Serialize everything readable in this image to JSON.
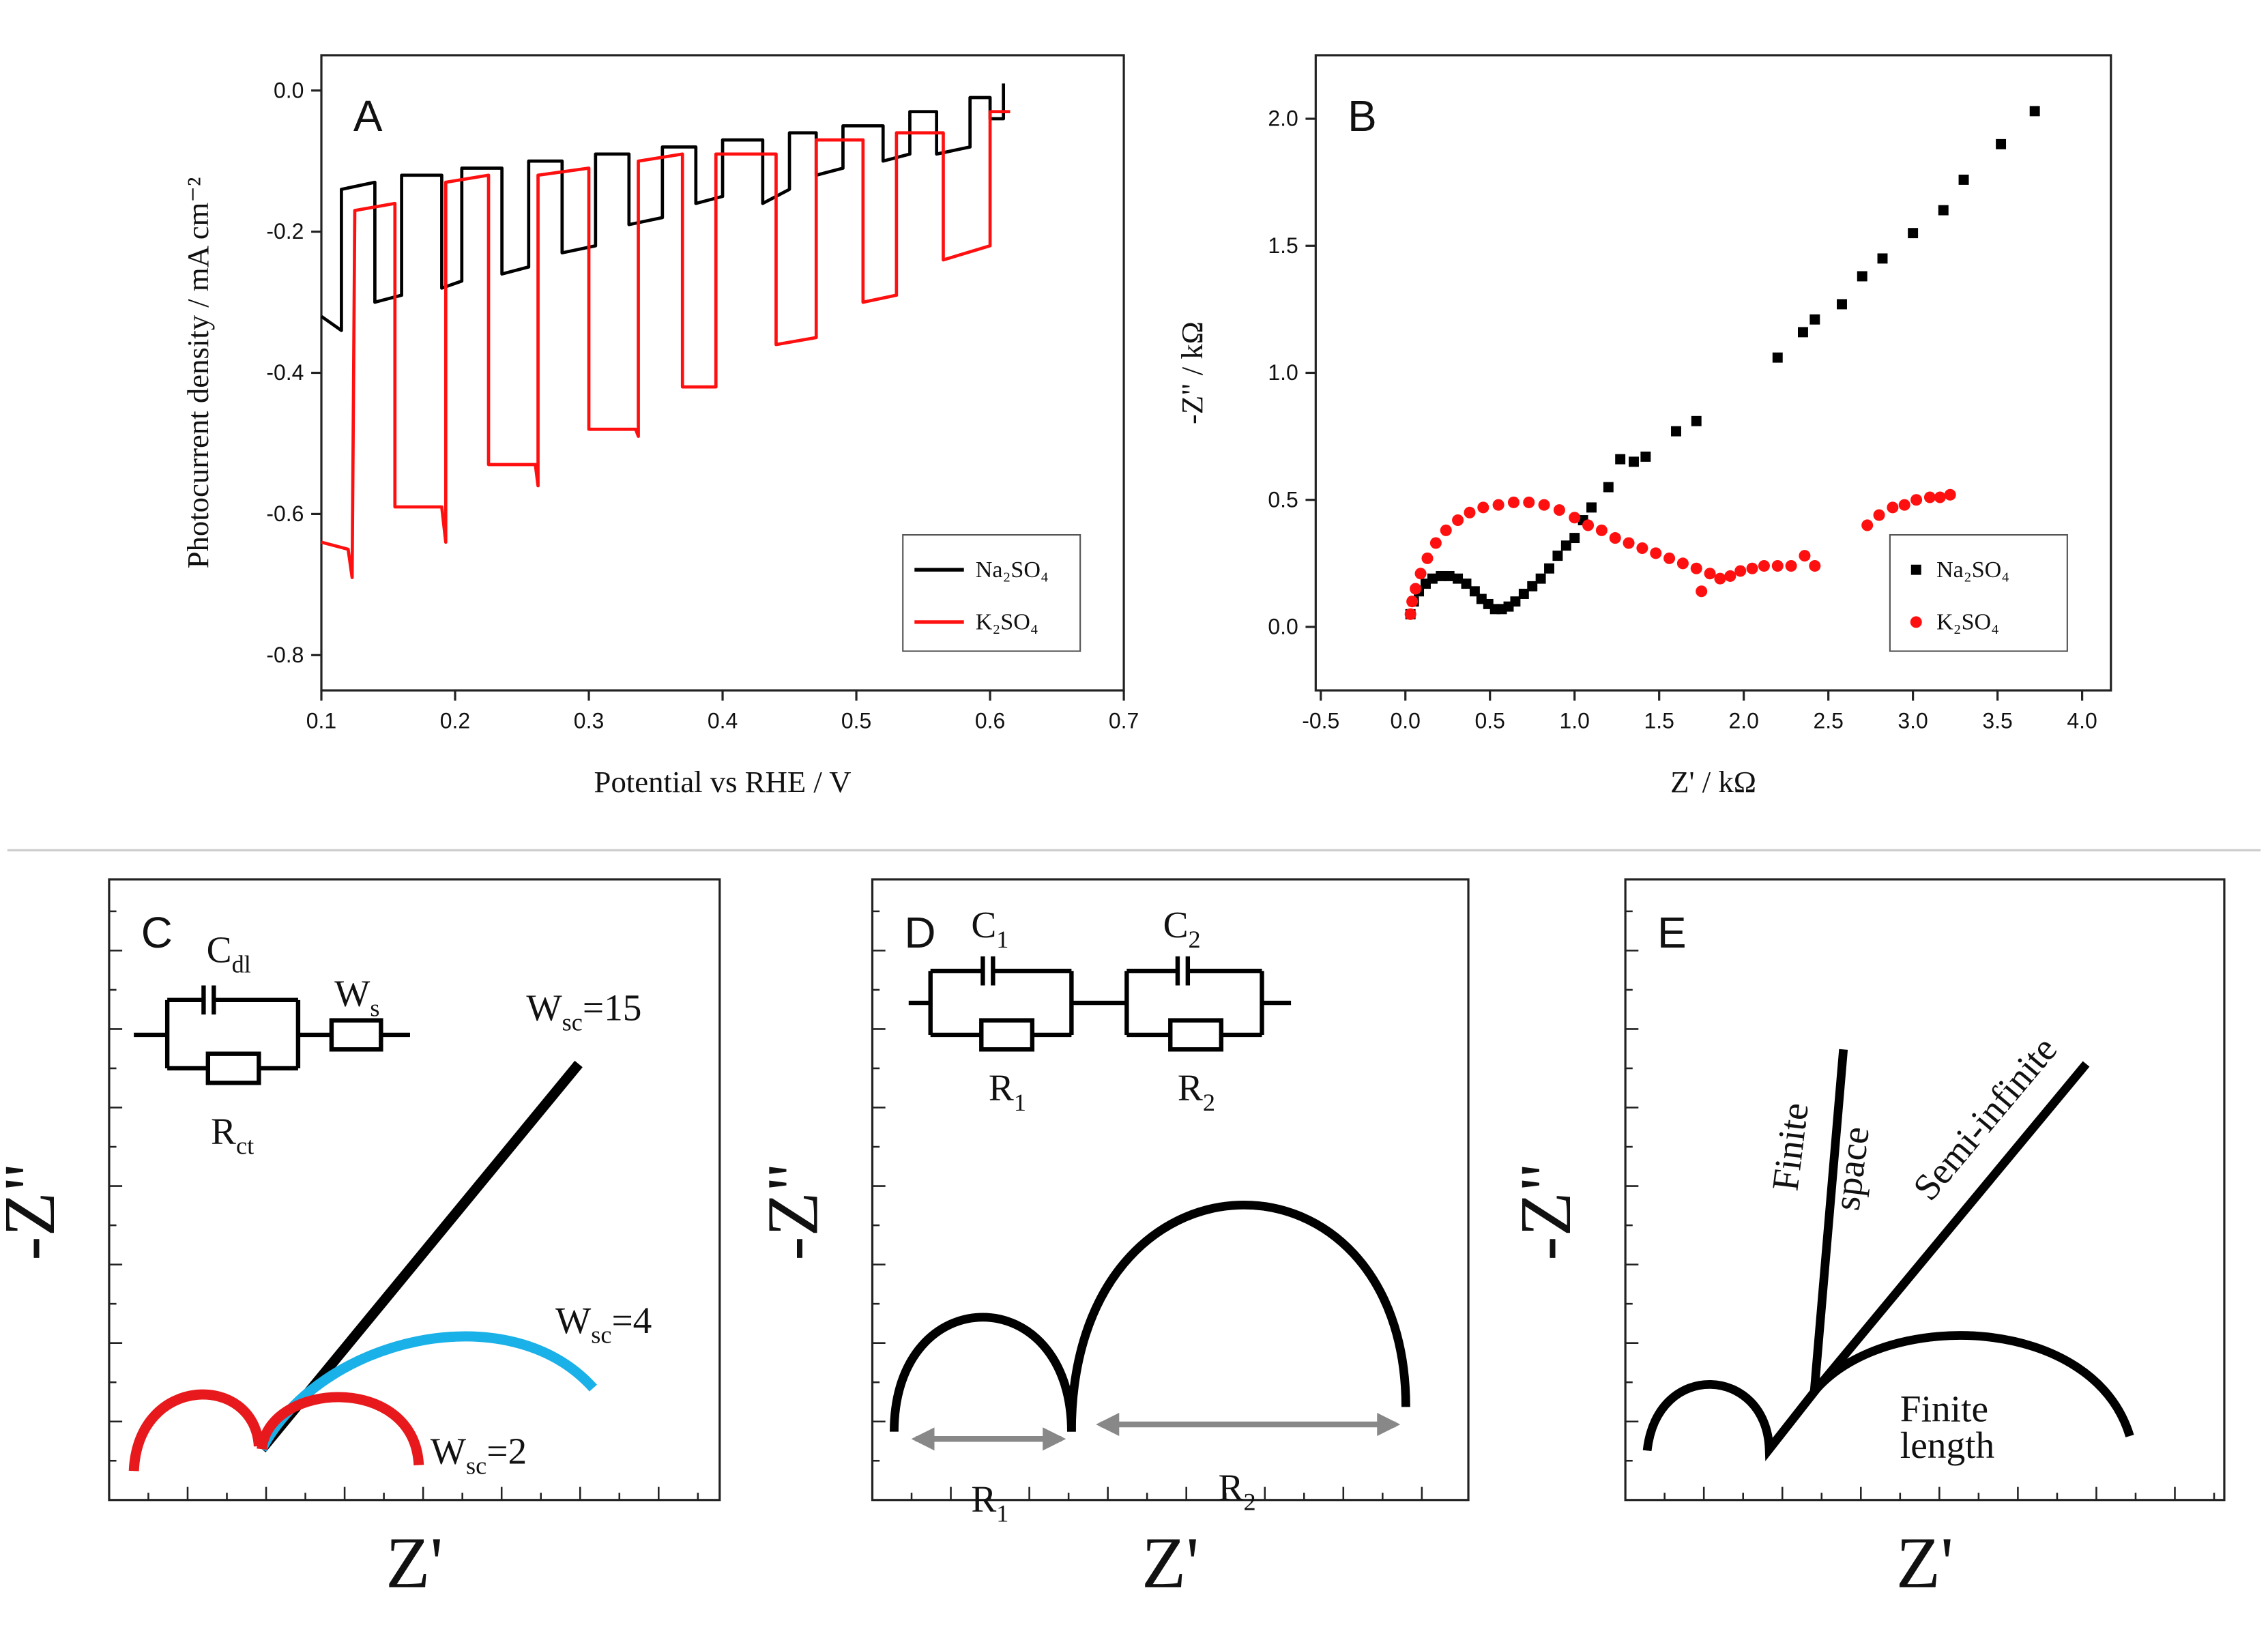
{
  "chart_data": [
    {
      "type": "line",
      "label": "A",
      "x_label": "Potential vs RHE / V",
      "y_label": "Photocurrent density / mA cm⁻²",
      "xlim": [
        0.1,
        0.7
      ],
      "xticks": [
        0.1,
        0.2,
        0.3,
        0.4,
        0.5,
        0.6,
        0.7
      ],
      "ylim": [
        -0.85,
        0.05
      ],
      "yticks": [
        {
          "value": 0,
          "label": "0.0"
        },
        -0.2,
        -0.4,
        -0.6,
        -0.8
      ],
      "legend": "lower right",
      "grid": false,
      "series": [
        {
          "name": "Na₂SO₄",
          "color": "#000000",
          "x": [
            0.1,
            0.115,
            0.115,
            0.14,
            0.14,
            0.16,
            0.16,
            0.19,
            0.19,
            0.205,
            0.205,
            0.235,
            0.235,
            0.255,
            0.255,
            0.28,
            0.28,
            0.305,
            0.305,
            0.33,
            0.33,
            0.355,
            0.355,
            0.38,
            0.38,
            0.4,
            0.4,
            0.43,
            0.43,
            0.45,
            0.45,
            0.47,
            0.47,
            0.49,
            0.49,
            0.52,
            0.52,
            0.54,
            0.54,
            0.56,
            0.56,
            0.585,
            0.585,
            0.6,
            0.6,
            0.61,
            0.61
          ],
          "values": [
            -0.32,
            -0.34,
            -0.14,
            -0.13,
            -0.3,
            -0.29,
            -0.12,
            -0.12,
            -0.28,
            -0.27,
            -0.11,
            -0.11,
            -0.26,
            -0.25,
            -0.1,
            -0.1,
            -0.23,
            -0.22,
            -0.09,
            -0.09,
            -0.19,
            -0.18,
            -0.08,
            -0.08,
            -0.16,
            -0.15,
            -0.07,
            -0.07,
            -0.16,
            -0.14,
            -0.06,
            -0.06,
            -0.12,
            -0.11,
            -0.05,
            -0.05,
            -0.1,
            -0.09,
            -0.03,
            -0.03,
            -0.09,
            -0.08,
            -0.01,
            -0.01,
            -0.04,
            -0.04,
            0.01
          ]
        },
        {
          "name": "K₂SO₄",
          "color": "#ff1010",
          "x": [
            0.1,
            0.12,
            0.123,
            0.125,
            0.155,
            0.155,
            0.19,
            0.193,
            0.193,
            0.225,
            0.225,
            0.26,
            0.262,
            0.262,
            0.3,
            0.3,
            0.335,
            0.337,
            0.337,
            0.37,
            0.37,
            0.395,
            0.395,
            0.44,
            0.44,
            0.47,
            0.47,
            0.505,
            0.505,
            0.53,
            0.53,
            0.565,
            0.565,
            0.6,
            0.6,
            0.615
          ],
          "values": [
            -0.64,
            -0.65,
            -0.69,
            -0.17,
            -0.16,
            -0.59,
            -0.59,
            -0.64,
            -0.13,
            -0.12,
            -0.53,
            -0.53,
            -0.56,
            -0.12,
            -0.11,
            -0.48,
            -0.48,
            -0.49,
            -0.1,
            -0.09,
            -0.42,
            -0.42,
            -0.09,
            -0.09,
            -0.36,
            -0.35,
            -0.07,
            -0.07,
            -0.3,
            -0.29,
            -0.06,
            -0.06,
            -0.24,
            -0.22,
            -0.03,
            -0.03
          ]
        }
      ]
    },
    {
      "type": "scatter",
      "label": "B",
      "x_label": "Z' / kΩ",
      "y_label": "-Z\" / kΩ",
      "xlim": [
        -0.53,
        4.17
      ],
      "xticks": [
        -0.5,
        {
          "value": 0,
          "label": "0.0"
        },
        0.5,
        {
          "value": 1,
          "label": "1.0"
        },
        1.5,
        {
          "value": 2,
          "label": "2.0"
        },
        2.5,
        {
          "value": 3,
          "label": "3.0"
        },
        3.5,
        {
          "value": 4,
          "label": "4.0"
        }
      ],
      "ylim": [
        -0.25,
        2.25
      ],
      "yticks": [
        {
          "value": 0,
          "label": "0.0"
        },
        0.5,
        {
          "value": 1,
          "label": "1.0"
        },
        1.5,
        {
          "value": 2,
          "label": "2.0"
        }
      ],
      "legend": "lower right",
      "grid": false,
      "series": [
        {
          "name": "Na₂SO₄",
          "color": "#000000",
          "marker": "square",
          "x": [
            0.03,
            0.05,
            0.08,
            0.12,
            0.16,
            0.21,
            0.26,
            0.31,
            0.36,
            0.41,
            0.45,
            0.49,
            0.53,
            0.57,
            0.61,
            0.65,
            0.7,
            0.75,
            0.8,
            0.85,
            0.9,
            0.95,
            1.0,
            1.05,
            1.1,
            1.2,
            1.27,
            1.35,
            1.42,
            1.6,
            1.72,
            2.2,
            2.35,
            2.42,
            2.58,
            2.7,
            2.82,
            3.0,
            3.18,
            3.3,
            3.52,
            3.72
          ],
          "values": [
            0.05,
            0.1,
            0.14,
            0.17,
            0.19,
            0.2,
            0.2,
            0.19,
            0.17,
            0.14,
            0.11,
            0.09,
            0.07,
            0.07,
            0.08,
            0.1,
            0.13,
            0.16,
            0.19,
            0.23,
            0.28,
            0.32,
            0.35,
            0.42,
            0.47,
            0.55,
            0.66,
            0.65,
            0.67,
            0.77,
            0.81,
            1.06,
            1.16,
            1.21,
            1.27,
            1.38,
            1.45,
            1.55,
            1.64,
            1.76,
            1.9,
            2.03
          ]
        },
        {
          "name": "K₂SO₄",
          "color": "#ff1010",
          "marker": "circle",
          "x": [
            0.03,
            0.04,
            0.06,
            0.09,
            0.13,
            0.18,
            0.24,
            0.31,
            0.38,
            0.46,
            0.55,
            0.64,
            0.73,
            0.82,
            0.91,
            1.0,
            1.08,
            1.16,
            1.24,
            1.32,
            1.4,
            1.48,
            1.56,
            1.64,
            1.72,
            1.75,
            1.8,
            1.86,
            1.92,
            1.98,
            2.05,
            2.12,
            2.2,
            2.28,
            2.36,
            2.42,
            2.73,
            2.8,
            2.88,
            2.95,
            3.02,
            3.1,
            3.16,
            3.22
          ],
          "values": [
            0.05,
            0.1,
            0.15,
            0.21,
            0.27,
            0.33,
            0.38,
            0.42,
            0.45,
            0.47,
            0.48,
            0.49,
            0.49,
            0.48,
            0.46,
            0.43,
            0.4,
            0.38,
            0.35,
            0.33,
            0.31,
            0.29,
            0.27,
            0.25,
            0.23,
            0.14,
            0.21,
            0.19,
            0.2,
            0.22,
            0.23,
            0.24,
            0.24,
            0.24,
            0.28,
            0.24,
            0.4,
            0.44,
            0.47,
            0.48,
            0.5,
            0.51,
            0.51,
            0.52
          ]
        }
      ]
    },
    {
      "type": "schematic",
      "label": "C",
      "x_label": "Z'",
      "y_label": "-Z\"",
      "texts": [
        {
          "base": "C",
          "sub": "dl"
        },
        {
          "base": "W",
          "sub": "s"
        },
        {
          "base": "R",
          "sub": "ct"
        },
        {
          "base": "W",
          "sub": "sc",
          "tail": "=15"
        },
        {
          "base": "W",
          "sub": "sc",
          "tail": "=4"
        },
        {
          "base": "W",
          "sub": "sc",
          "tail": "=2"
        }
      ]
    },
    {
      "type": "schematic",
      "label": "D",
      "x_label": "Z'",
      "y_label": "-Z\"",
      "texts": [
        {
          "base": "C",
          "sub": "1"
        },
        {
          "base": "C",
          "sub": "2"
        },
        {
          "base": "R",
          "sub": "1"
        },
        {
          "base": "R",
          "sub": "2"
        },
        {
          "base": "R",
          "sub": "1"
        },
        {
          "base": "R",
          "sub": "2"
        }
      ]
    },
    {
      "type": "schematic",
      "label": "E",
      "x_label": "Z'",
      "y_label": "-Z\"",
      "texts": [
        {
          "base": "Finite"
        },
        {
          "base": "space"
        },
        {
          "base": "Semi-infinite"
        },
        {
          "base": "Finite"
        },
        {
          "base": "length"
        }
      ]
    }
  ]
}
